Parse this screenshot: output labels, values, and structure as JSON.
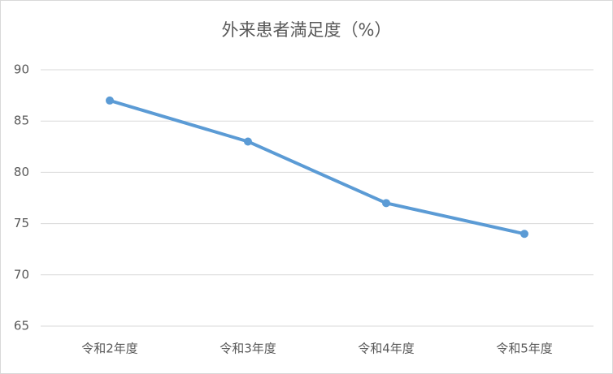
{
  "chart_data": {
    "type": "line",
    "title": "外来患者満足度（%）",
    "categories": [
      "令和2年度",
      "令和3年度",
      "令和4年度",
      "令和5年度"
    ],
    "values": [
      87,
      83,
      77,
      74
    ],
    "color": "#5b9bd5",
    "ylim": [
      65,
      90
    ],
    "yticks": [
      65,
      70,
      75,
      80,
      85,
      90
    ],
    "grid": true
  }
}
